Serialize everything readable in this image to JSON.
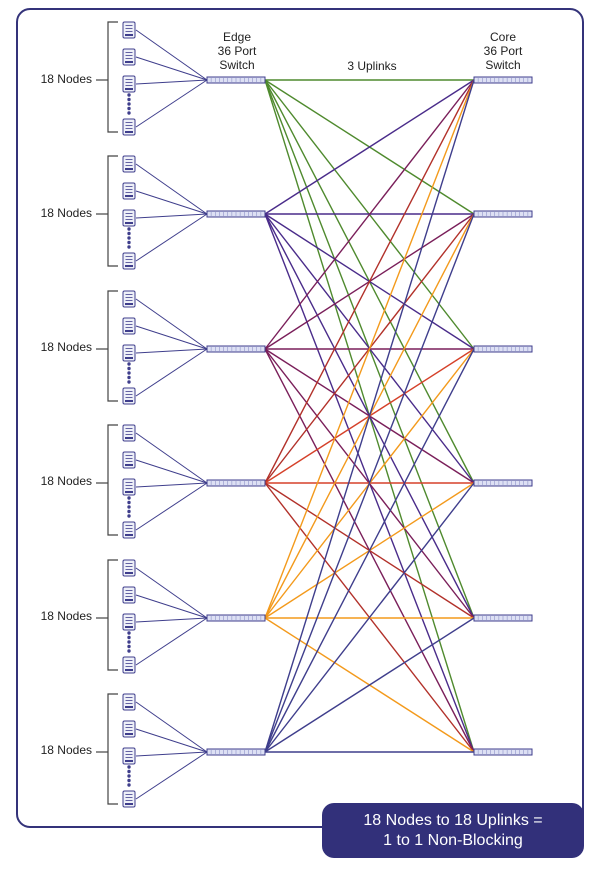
{
  "edge_header": [
    "Edge",
    "36 Port",
    "Switch"
  ],
  "core_header": [
    "Core",
    "36 Port",
    "Switch"
  ],
  "uplinks_label": "3 Uplinks",
  "groups": [
    {
      "label": "18 Nodes"
    },
    {
      "label": "18 Nodes"
    },
    {
      "label": "18 Nodes"
    },
    {
      "label": "18 Nodes"
    },
    {
      "label": "18 Nodes"
    },
    {
      "label": "18 Nodes"
    }
  ],
  "callout": [
    "18 Nodes to 18 Uplinks =",
    "1 to 1 Non-Blocking"
  ],
  "colors": {
    "frame": "#34337a",
    "node_link": "#3f3e8c",
    "uplink_palette": [
      "#4f8a2e",
      "#4a2c8a",
      "#7a1f5a",
      "#b2312a",
      "#d5412a",
      "#f39a1c"
    ]
  },
  "edges": [
    {
      "uplinks": [
        {
          "core": 0,
          "color": "#4f8a2e"
        },
        {
          "core": 1,
          "color": "#4f8a2e"
        },
        {
          "core": 2,
          "color": "#4f8a2e"
        }
      ]
    },
    {
      "uplinks": [
        {
          "core": 0,
          "color": "#4a2c8a"
        },
        {
          "core": 1,
          "color": "#4a2c8a"
        },
        {
          "core": 2,
          "color": "#4a2c8a"
        }
      ]
    },
    {
      "uplinks": [
        {
          "core": 0,
          "color": "#7a1f5a"
        },
        {
          "core": 1,
          "color": "#7a1f5a"
        },
        {
          "core": 2,
          "color": "#7a1f5a"
        }
      ]
    },
    {
      "uplinks": [
        {
          "core": 0,
          "color": "#b2312a"
        },
        {
          "core": 1,
          "color": "#d5412a"
        },
        {
          "core": 2,
          "color": "#b2312a"
        }
      ]
    },
    {
      "uplinks": [
        {
          "core": 0,
          "color": "#f39a1c"
        },
        {
          "core": 1,
          "color": "#f39a1c"
        },
        {
          "core": 2,
          "color": "#f39a1c"
        }
      ]
    },
    {
      "uplinks": [
        {
          "core": 0,
          "color": "#3f3e8c"
        },
        {
          "core": 1,
          "color": "#3f3e8c"
        },
        {
          "core": 2,
          "color": "#3f3e8c"
        }
      ]
    }
  ]
}
